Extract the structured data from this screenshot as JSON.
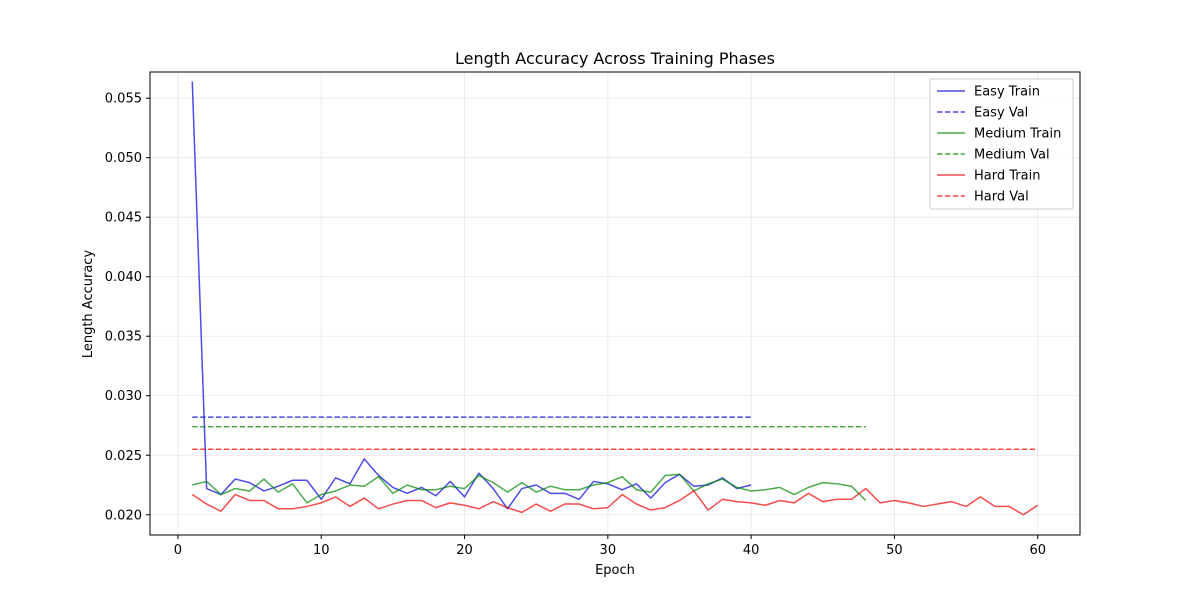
{
  "chart_data": {
    "type": "line",
    "title": "Length Accuracy Across Training Phases",
    "xlabel": "Epoch",
    "ylabel": "Length Accuracy",
    "xlim": [
      -1.95,
      62.95
    ],
    "ylim": [
      0.0183,
      0.0572
    ],
    "xticks": [
      0,
      10,
      20,
      30,
      40,
      50,
      60
    ],
    "yticks": [
      0.02,
      0.025,
      0.03,
      0.035,
      0.04,
      0.045,
      0.05,
      0.055
    ],
    "ytick_labels": [
      "0.020",
      "0.025",
      "0.030",
      "0.035",
      "0.040",
      "0.045",
      "0.050",
      "0.055"
    ],
    "grid": true,
    "legend_position": "top-right",
    "series": [
      {
        "name": "Easy Train",
        "color": "#0000dd",
        "style": "solid",
        "x": [
          1,
          2,
          3,
          4,
          5,
          6,
          7,
          8,
          9,
          10,
          11,
          12,
          13,
          14,
          15,
          16,
          17,
          18,
          19,
          20,
          21,
          22,
          23,
          24,
          25,
          26,
          27,
          28,
          29,
          30,
          31,
          32,
          33,
          34,
          35,
          36,
          37,
          38,
          39,
          40
        ],
        "y": [
          0.0564,
          0.0222,
          0.0217,
          0.023,
          0.0227,
          0.022,
          0.0224,
          0.0229,
          0.0229,
          0.0213,
          0.0231,
          0.0226,
          0.0247,
          0.0233,
          0.0223,
          0.0218,
          0.0223,
          0.0216,
          0.0228,
          0.0215,
          0.0235,
          0.0222,
          0.0205,
          0.0222,
          0.0225,
          0.0218,
          0.0218,
          0.0213,
          0.0228,
          0.0226,
          0.0221,
          0.0226,
          0.0214,
          0.0227,
          0.0234,
          0.0224,
          0.0225,
          0.0231,
          0.0222,
          0.0225
        ]
      },
      {
        "name": "Easy Val",
        "color": "#0000dd",
        "style": "dashed",
        "x": [
          1,
          40
        ],
        "y": [
          0.0282,
          0.0282
        ]
      },
      {
        "name": "Medium Train",
        "color": "#008800",
        "style": "solid",
        "x": [
          1,
          2,
          3,
          4,
          5,
          6,
          7,
          8,
          9,
          10,
          11,
          12,
          13,
          14,
          15,
          16,
          17,
          18,
          19,
          20,
          21,
          22,
          23,
          24,
          25,
          26,
          27,
          28,
          29,
          30,
          31,
          32,
          33,
          34,
          35,
          36,
          37,
          38,
          39,
          40,
          41,
          42,
          43,
          44,
          45,
          46,
          47,
          48
        ],
        "y": [
          0.0225,
          0.0228,
          0.0217,
          0.0222,
          0.022,
          0.023,
          0.0219,
          0.0226,
          0.021,
          0.0217,
          0.022,
          0.0225,
          0.0224,
          0.0232,
          0.0218,
          0.0225,
          0.0221,
          0.0221,
          0.0224,
          0.0222,
          0.0233,
          0.0227,
          0.0219,
          0.0227,
          0.0219,
          0.0224,
          0.0221,
          0.0221,
          0.0225,
          0.0227,
          0.0232,
          0.0221,
          0.0219,
          0.0233,
          0.0234,
          0.022,
          0.0226,
          0.023,
          0.0223,
          0.022,
          0.0221,
          0.0223,
          0.0217,
          0.0223,
          0.0227,
          0.0226,
          0.0224,
          0.0212
        ]
      },
      {
        "name": "Medium Val",
        "color": "#008800",
        "style": "dashed",
        "x": [
          1,
          48
        ],
        "y": [
          0.0274,
          0.0274
        ]
      },
      {
        "name": "Hard Train",
        "color": "#ee0000",
        "style": "solid",
        "x": [
          1,
          2,
          3,
          4,
          5,
          6,
          7,
          8,
          9,
          10,
          11,
          12,
          13,
          14,
          15,
          16,
          17,
          18,
          19,
          20,
          21,
          22,
          23,
          24,
          25,
          26,
          27,
          28,
          29,
          30,
          31,
          32,
          33,
          34,
          35,
          36,
          37,
          38,
          39,
          40,
          41,
          42,
          43,
          44,
          45,
          46,
          47,
          48,
          49,
          50,
          51,
          52,
          53,
          54,
          55,
          56,
          57,
          58,
          59,
          60
        ],
        "y": [
          0.0217,
          0.0209,
          0.0203,
          0.0217,
          0.0212,
          0.0212,
          0.0205,
          0.0205,
          0.0207,
          0.021,
          0.0215,
          0.0207,
          0.0214,
          0.0205,
          0.0209,
          0.0212,
          0.0212,
          0.0206,
          0.021,
          0.0208,
          0.0205,
          0.0211,
          0.0206,
          0.0202,
          0.0209,
          0.0203,
          0.0209,
          0.0209,
          0.0205,
          0.0206,
          0.0217,
          0.0209,
          0.0204,
          0.0206,
          0.0212,
          0.022,
          0.0204,
          0.0213,
          0.0211,
          0.021,
          0.0208,
          0.0212,
          0.021,
          0.0218,
          0.0211,
          0.0213,
          0.0213,
          0.0222,
          0.021,
          0.0212,
          0.021,
          0.0207,
          0.0209,
          0.0211,
          0.0207,
          0.0215,
          0.0207,
          0.0207,
          0.02,
          0.0208
        ]
      },
      {
        "name": "Hard Val",
        "color": "#ee0000",
        "style": "dashed",
        "x": [
          1,
          60
        ],
        "y": [
          0.0255,
          0.0255
        ]
      }
    ]
  }
}
